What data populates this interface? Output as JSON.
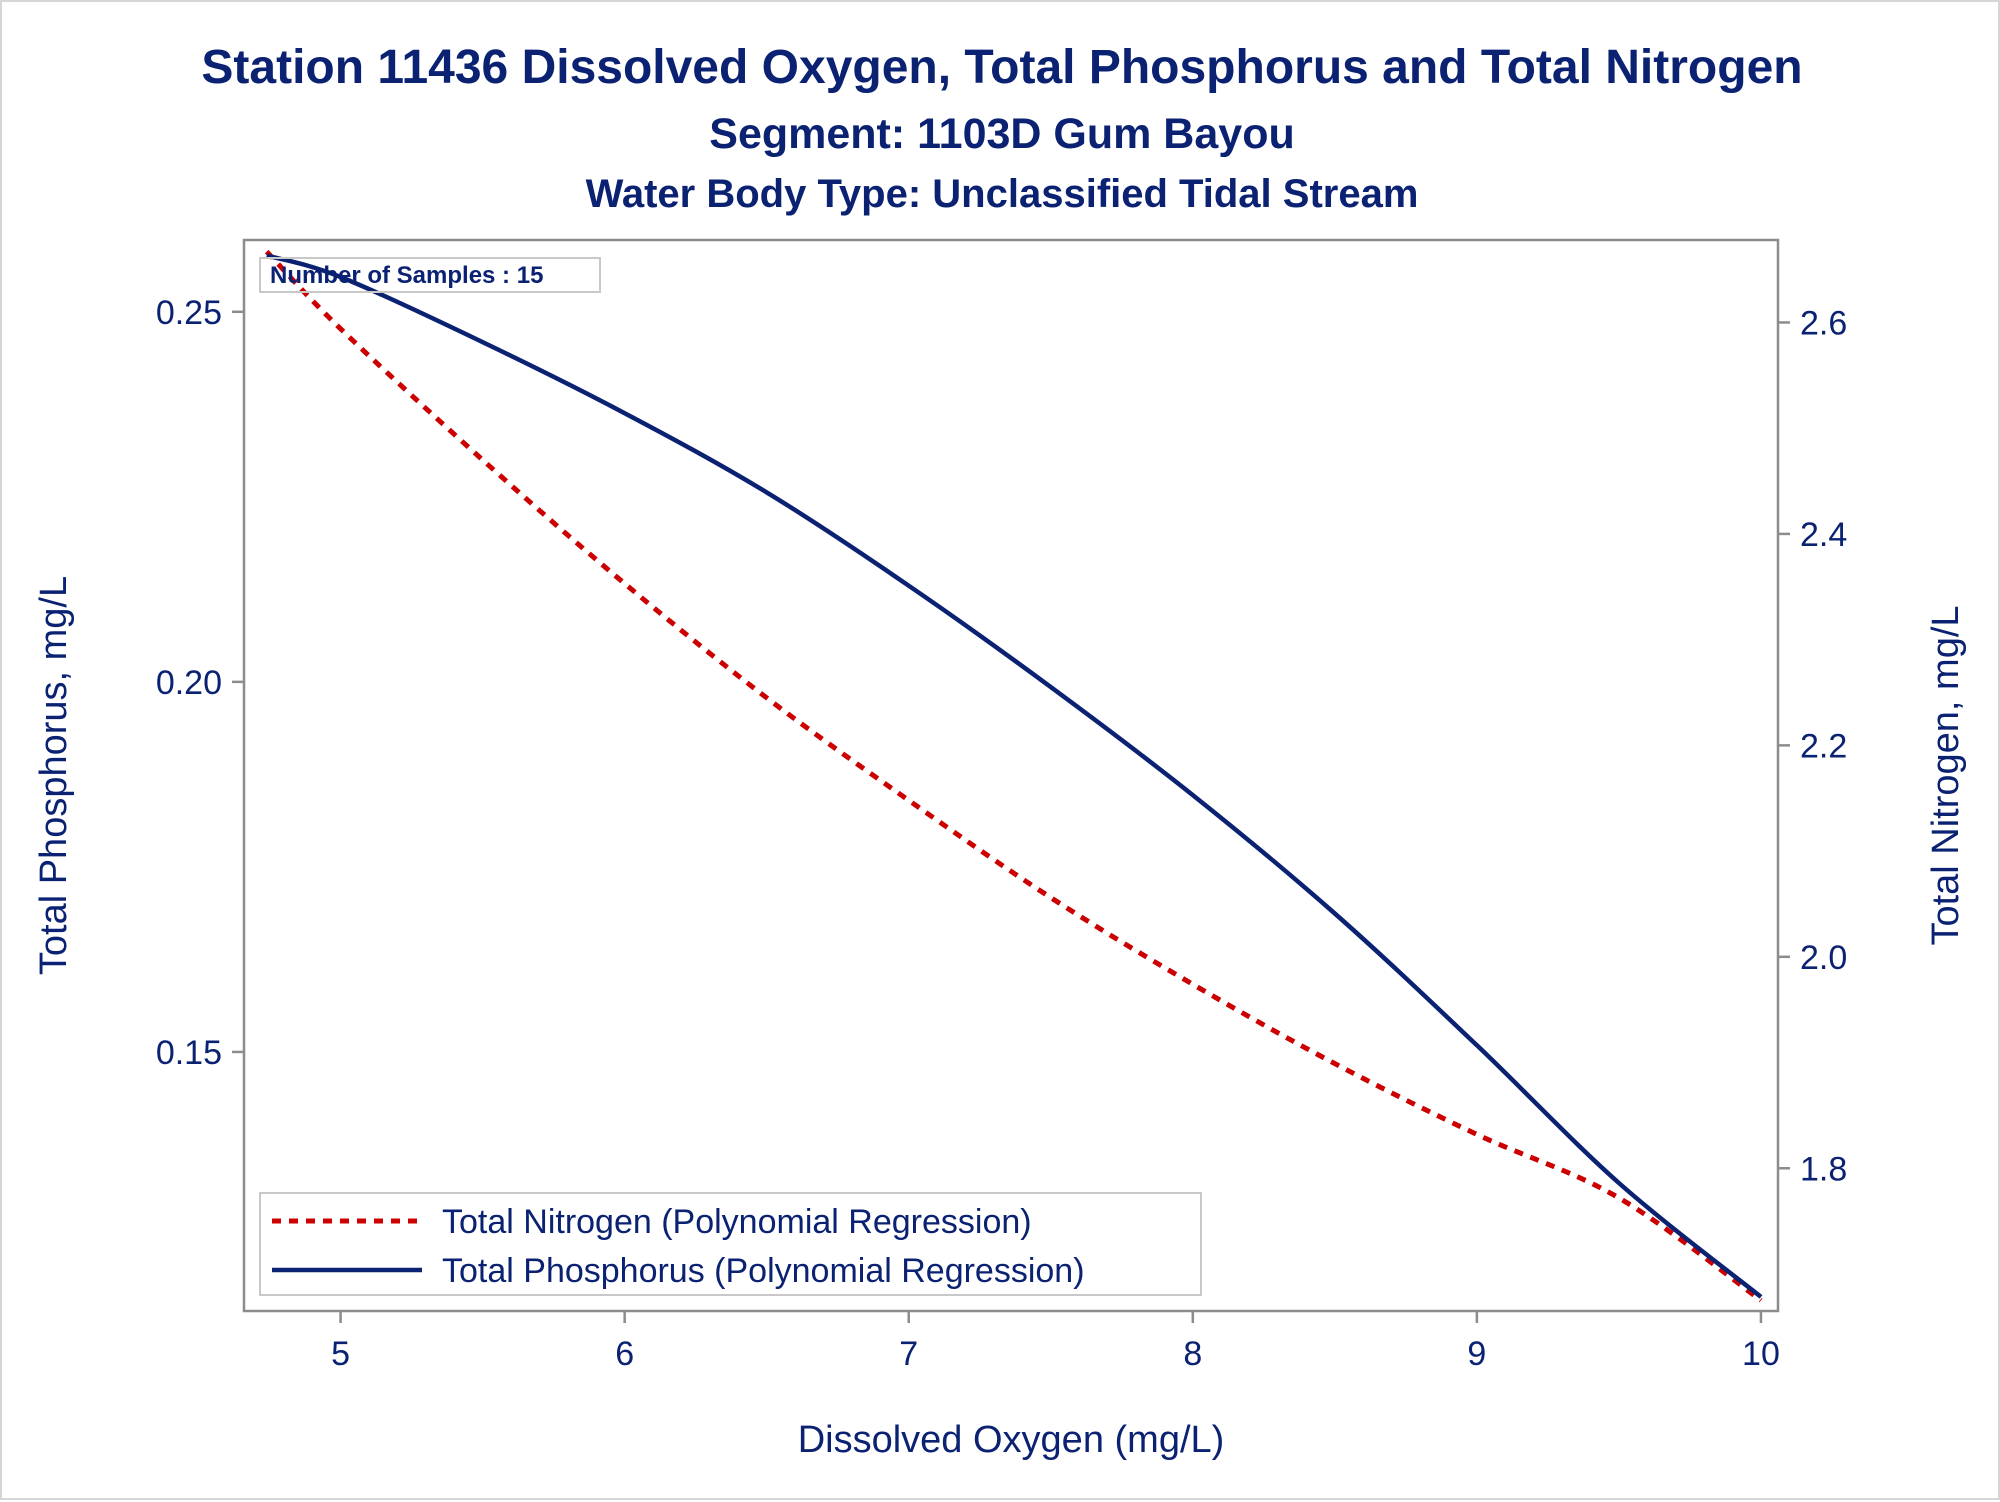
{
  "titles": {
    "line1": "Station 11436  Dissolved Oxygen, Total Phosphorus and Total Nitrogen",
    "line2": "Segment: 1103D  Gum Bayou",
    "line3": "Water Body Type: Unclassified Tidal Stream"
  },
  "colors": {
    "text": "#0b2273",
    "axis": "#8c8c8c",
    "phosphorus": "#0b2273",
    "nitrogen": "#cc0000"
  },
  "chart_data": {
    "type": "line",
    "title": "Station 11436  Dissolved Oxygen, Total Phosphorus and Total Nitrogen",
    "subtitle": "Segment: 1103D  Gum Bayou",
    "subtitle2": "Water Body Type: Unclassified Tidal Stream",
    "xlabel": "Dissolved Oxygen (mg/L)",
    "ylabel_left": "Total Phosphorus, mg/L",
    "ylabel_right": "Total Nitrogen, mg/L",
    "xlim": [
      4.66,
      10.06
    ],
    "ylim_left": [
      0.115,
      0.2597
    ],
    "ylim_right": [
      1.665,
      2.678
    ],
    "x_ticks": [
      "5",
      "6",
      "7",
      "8",
      "9",
      "10"
    ],
    "y_left_ticks": [
      "0.15",
      "0.20",
      "0.25"
    ],
    "y_right_ticks": [
      "1.8",
      "2.0",
      "2.2",
      "2.4",
      "2.6"
    ],
    "annotation": "Number of Samples : 15",
    "grid": false,
    "legend_position": "bottom-left",
    "series": [
      {
        "name": "Total Nitrogen (Polynomial Regression)",
        "axis": "right",
        "style": "dashed",
        "x": [
          4.74,
          5.0,
          5.5,
          6.0,
          6.5,
          7.0,
          7.5,
          8.0,
          8.5,
          9.0,
          9.5,
          10.0
        ],
        "y": [
          2.667,
          2.594,
          2.47,
          2.353,
          2.245,
          2.148,
          2.056,
          1.974,
          1.899,
          1.832,
          1.772,
          1.675
        ]
      },
      {
        "name": "Total Phosphorus (Polynomial Regression)",
        "axis": "left",
        "style": "solid",
        "x": [
          4.74,
          5.0,
          5.5,
          6.0,
          6.5,
          7.0,
          7.5,
          8.0,
          8.5,
          9.0,
          9.5,
          10.0
        ],
        "y": [
          0.2576,
          0.2547,
          0.2459,
          0.2363,
          0.2256,
          0.213,
          0.1993,
          0.1847,
          0.1687,
          0.1509,
          0.1323,
          0.1169
        ]
      }
    ]
  }
}
